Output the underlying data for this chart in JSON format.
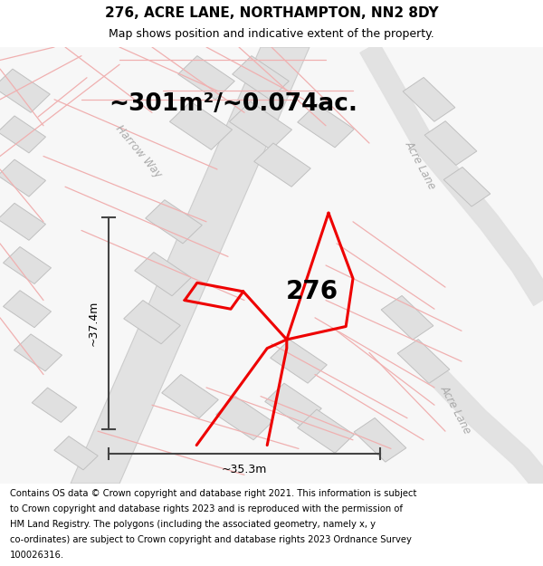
{
  "title": "276, ACRE LANE, NORTHAMPTON, NN2 8DY",
  "subtitle": "Map shows position and indicative extent of the property.",
  "area_text": "~301m²/~0.074ac.",
  "property_number": "276",
  "dim_width": "~35.3m",
  "dim_height": "~37.4m",
  "street_harrow": "Harrow Way",
  "street_acre_top": "Acre Lane",
  "street_acre_bot": "Acre Lane",
  "footer": "Contains OS data © Crown copyright and database right 2021. This information is subject to Crown copyright and database rights 2023 and is reproduced with the permission of HM Land Registry. The polygons (including the associated geometry, namely x, y co-ordinates) are subject to Crown copyright and database rights 2023 Ordnance Survey 100026316.",
  "map_bg": "#f7f7f7",
  "road_fill": "#e2e2e2",
  "road_edge": "#cccccc",
  "building_fill": "#e0e0e0",
  "building_edge": "#c0c0c0",
  "pink": "#f0b0b0",
  "red": "#ee0000",
  "arrow_col": "#444444",
  "title_fs": 11,
  "subtitle_fs": 9,
  "area_fs": 19,
  "num_fs": 20,
  "dim_fs": 9,
  "footer_fs": 7.2,
  "street_fs": 8.5
}
